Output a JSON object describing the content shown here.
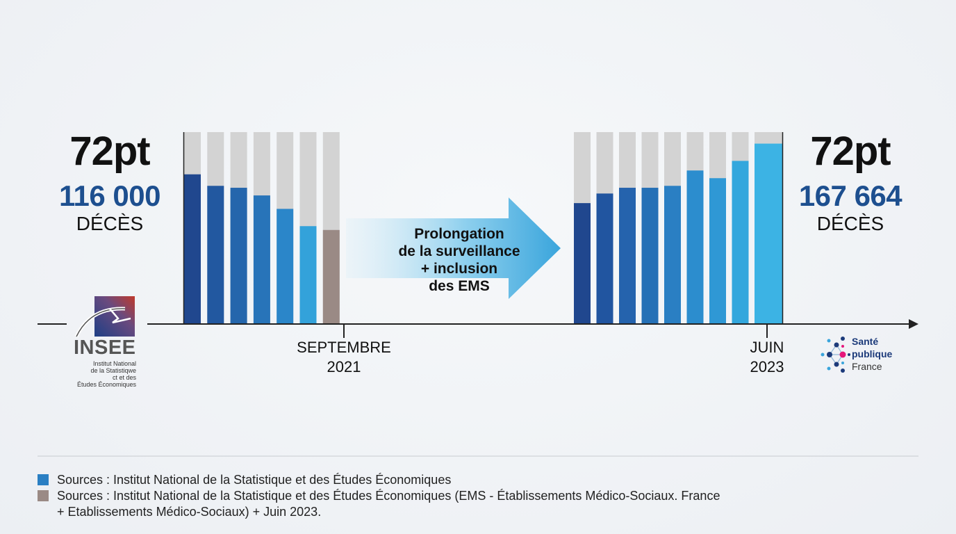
{
  "chart_data": {
    "type": "bar",
    "left_panel": {
      "headline": "72pt",
      "total": "116 000",
      "unit": "DÉCÈS",
      "values": [
        0.78,
        0.72,
        0.71,
        0.67,
        0.6,
        0.51,
        0.49
      ],
      "colors": [
        "#20478e",
        "#2258a0",
        "#2566ac",
        "#2874b9",
        "#2b86c9",
        "#33a2da",
        "#9a8a85"
      ]
    },
    "right_panel": {
      "headline": "72pt",
      "total": "167 664",
      "unit": "DÉCÈS",
      "values": [
        0.63,
        0.68,
        0.71,
        0.71,
        0.72,
        0.8,
        0.76,
        0.85,
        0.94
      ],
      "colors": [
        "#20478e",
        "#2155a0",
        "#2563ad",
        "#2570b6",
        "#2a7fc3",
        "#2c8dce",
        "#2f98d5",
        "#33a7dd",
        "#3cb3e4"
      ]
    },
    "ticks": [
      {
        "line1": "SEPTEMBRE",
        "line2": "2021"
      },
      {
        "line1": "JUIN",
        "line2": "2023"
      }
    ],
    "annotation": [
      "Prolongation",
      "de la surveillance",
      "+ inclusion",
      "des EMS"
    ],
    "legend": [
      {
        "color": "#2a7fc3",
        "text": "Sources : Institut National de la Statistique et des Études Économiques"
      },
      {
        "color": "#9a8a85",
        "text": "Sources : Institut National de la Statistique et des Études Économiques  (EMS - Établissements Médico-Sociaux. France",
        "text2": "+ Etablissements Médico-Sociaux) + Juin 2023."
      }
    ]
  },
  "insee_logo": {
    "name": "INSEE",
    "subtitle": [
      "Institut National",
      "de la Statistiqwe",
      "ct  et des",
      "Études Économiques"
    ]
  },
  "spf_logo": {
    "line1": "Santé",
    "line2": "publique",
    "line3": "France"
  }
}
